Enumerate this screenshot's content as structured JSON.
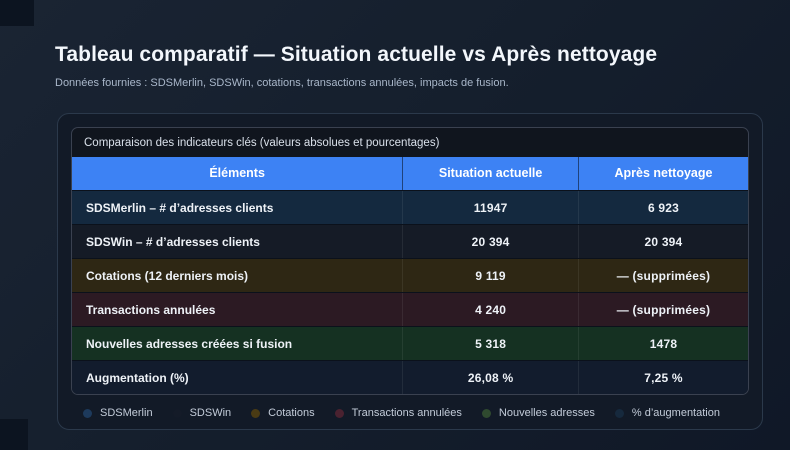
{
  "header": {
    "title": "Tableau comparatif — Situation actuelle vs Après nettoyage",
    "subtitle": "Données fournies : SDSMerlin, SDSWin, cotations, transactions annulées, impacts de fusion."
  },
  "table": {
    "caption": "Comparaison des indicateurs clés (valeurs absolues et pourcentages)",
    "columns": [
      "Éléments",
      "Situation actuelle",
      "Après nettoyage"
    ],
    "header_color": "#3d82f4",
    "rows": [
      {
        "label": "SDSMerlin – # d’adresses clients",
        "current": "11947",
        "after": "6 923",
        "row_color": "#14293f"
      },
      {
        "label": "SDSWin – # d’adresses clients",
        "current": "20 394",
        "after": "20 394",
        "row_color": "#151b26"
      },
      {
        "label": "Cotations (12 derniers mois)",
        "current": "9 119",
        "after": "— (supprimées)",
        "row_color": "#2e2714"
      },
      {
        "label": "Transactions annulées",
        "current": "4 240",
        "after": "— (supprimées)",
        "row_color": "#2c1a23"
      },
      {
        "label": "Nouvelles adresses créées si fusion",
        "current": "5 318",
        "after": "1478",
        "row_color": "#153122"
      },
      {
        "label": "Augmentation (%)",
        "current": "26,08 %",
        "after": "7,25 %",
        "row_color": "#121c2d"
      }
    ]
  },
  "legend": {
    "items": [
      {
        "label": "SDSMerlin",
        "color": "#1d3a5c"
      },
      {
        "label": "SDSWin",
        "color": "#141b28"
      },
      {
        "label": "Cotations",
        "color": "#4a3b14"
      },
      {
        "label": "Transactions annulées",
        "color": "#4a2230"
      },
      {
        "label": "Nouvelles adresses",
        "color": "#2f4a2f"
      },
      {
        "label": "% d’augmentation",
        "color": "#16293d"
      }
    ]
  }
}
